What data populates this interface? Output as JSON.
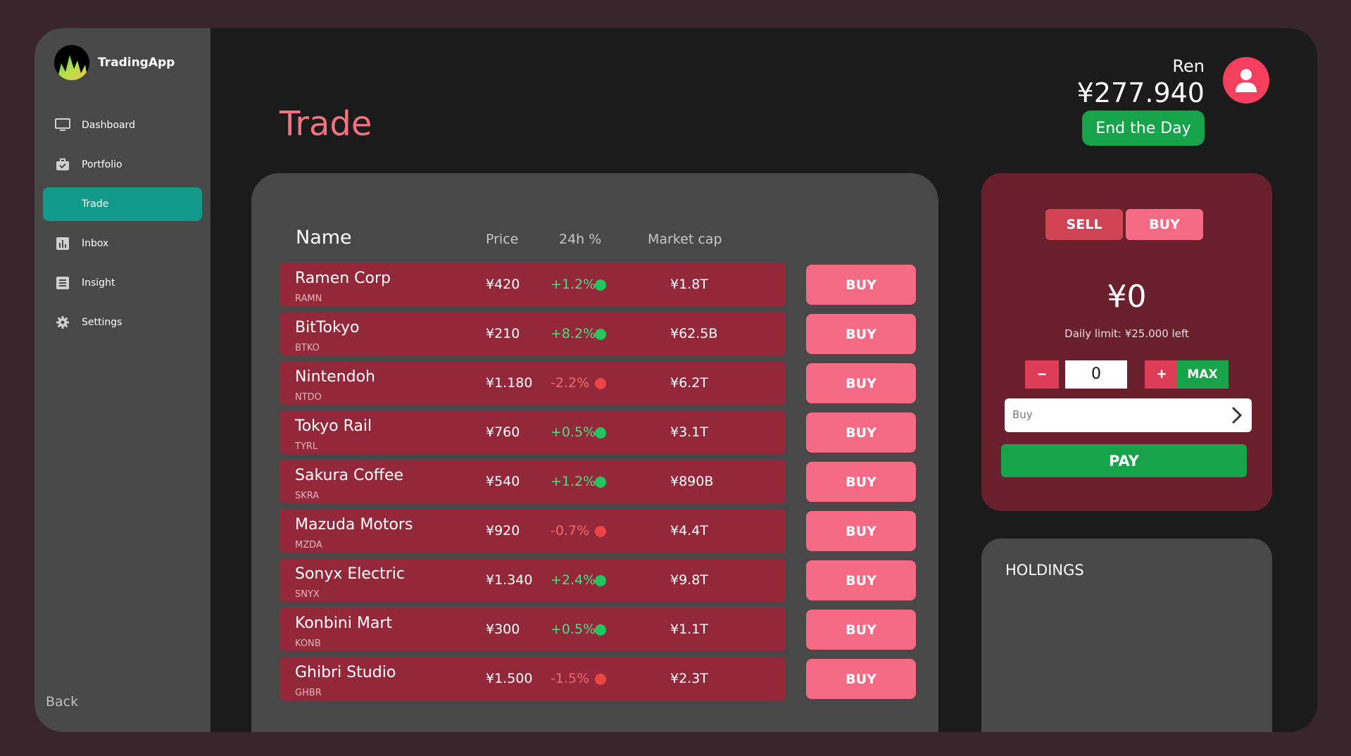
{
  "app": {
    "name": "TradingApp"
  },
  "sidebar": {
    "items": [
      {
        "label": "Dashboard",
        "icon": "monitor-icon",
        "active": false
      },
      {
        "label": "Portfolio",
        "icon": "briefcase-icon",
        "active": false
      },
      {
        "label": "Trade",
        "icon": "",
        "active": true
      },
      {
        "label": "Inbox",
        "icon": "chart-icon",
        "active": false
      },
      {
        "label": "Insight",
        "icon": "document-icon",
        "active": false
      },
      {
        "label": "Settings",
        "icon": "gear-icon",
        "active": false
      }
    ],
    "back_label": "Back"
  },
  "header": {
    "title": "Trade",
    "user_name": "Ren",
    "balance": "¥277.940",
    "end_day_label": "End the Day"
  },
  "market": {
    "headers": {
      "name": "Name",
      "price": "Price",
      "change": "24h %",
      "cap": "Market cap"
    },
    "buy_label": "BUY",
    "rows": [
      {
        "name": "Ramen Corp",
        "ticker": "RAMN",
        "price": "¥420",
        "change": "+1.2%",
        "trend": "up",
        "cap": "¥1.8T"
      },
      {
        "name": "BitTokyo",
        "ticker": "BTKO",
        "price": "¥210",
        "change": "+8.2%",
        "trend": "up",
        "cap": "¥62.5B"
      },
      {
        "name": "Nintendoh",
        "ticker": "NTDO",
        "price": "¥1.180",
        "change": "-2.2%",
        "trend": "down",
        "cap": "¥6.2T"
      },
      {
        "name": "Tokyo Rail",
        "ticker": "TYRL",
        "price": "¥760",
        "change": "+0.5%",
        "trend": "up",
        "cap": "¥3.1T"
      },
      {
        "name": "Sakura Coffee",
        "ticker": "SKRA",
        "price": "¥540",
        "change": "+1.2%",
        "trend": "up",
        "cap": "¥890B"
      },
      {
        "name": "Mazuda Motors",
        "ticker": "MZDA",
        "price": "¥920",
        "change": "-0.7%",
        "trend": "down",
        "cap": "¥4.4T"
      },
      {
        "name": "Sonyx Electric",
        "ticker": "SNYX",
        "price": "¥1.340",
        "change": "+2.4%",
        "trend": "up",
        "cap": "¥9.8T"
      },
      {
        "name": "Konbini Mart",
        "ticker": "KONB",
        "price": "¥300",
        "change": "+0.5%",
        "trend": "up",
        "cap": "¥1.1T"
      },
      {
        "name": "Ghibri Studio",
        "ticker": "GHBR",
        "price": "¥1.500",
        "change": "-1.5%",
        "trend": "down",
        "cap": "¥2.3T"
      }
    ]
  },
  "order": {
    "sell_label": "SELL",
    "buy_label": "BUY",
    "amount": "¥0",
    "limit_text": "Daily limit: ¥25.000 left",
    "minus": "−",
    "plus": "+",
    "quantity": "0",
    "max_label": "MAX",
    "mode": "Buy",
    "pay_label": "PAY"
  },
  "holdings": {
    "title": "HOLDINGS"
  },
  "colors": {
    "background": "#37252b",
    "panel": "#484848",
    "accent_teal": "#119a8a",
    "title_pink": "#f2727f",
    "row_red": "#93283b",
    "buy_pink": "#f56b86",
    "green": "#16a34a",
    "order_panel": "#6a1f2c"
  }
}
